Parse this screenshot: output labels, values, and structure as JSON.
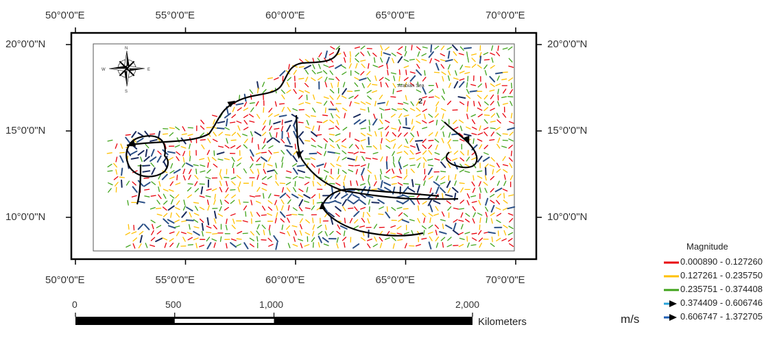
{
  "map": {
    "lon_labels": [
      "50°0'0\"E",
      "55°0'0\"E",
      "60°0'0\"E",
      "65°0'0\"E",
      "70°0'0\"E"
    ],
    "lat_labels": [
      "20°0'0\"N",
      "15°0'0\"N",
      "10°0'0\"N"
    ],
    "lon_values": [
      50,
      55,
      60,
      65,
      70
    ],
    "lat_values": [
      20,
      15,
      10
    ],
    "sea_label": "Arabian Sea",
    "region_number": "2",
    "compass_letters": {
      "n": "N",
      "s": "S",
      "e": "E",
      "w": "W"
    }
  },
  "scalebar": {
    "ticks": [
      "0",
      "500",
      "1,000",
      "2,000"
    ],
    "tick_values": [
      0,
      500,
      1000,
      2000
    ],
    "units": "Kilometers"
  },
  "legend": {
    "title": "Magnitude",
    "units": "m/s",
    "classes": [
      {
        "range": "0.000890 - 0.127260",
        "color": "#e8000b",
        "marker": "line"
      },
      {
        "range": "0.127261 - 0.235750",
        "color": "#ffc000",
        "marker": "line"
      },
      {
        "range": "0.235751 - 0.374408",
        "color": "#3fa31a",
        "marker": "line"
      },
      {
        "range": "0.374409 - 0.606746",
        "color": "#2aa3d9",
        "marker": "arrow"
      },
      {
        "range": "0.606747 - 1.372705",
        "color": "#1f5fb4",
        "marker": "arrow"
      }
    ]
  }
}
